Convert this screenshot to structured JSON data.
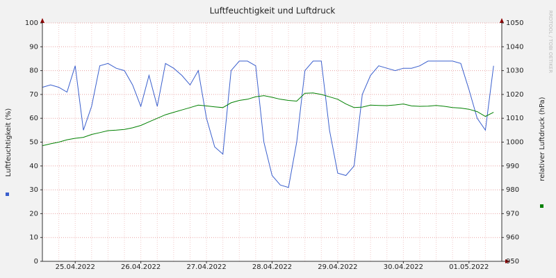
{
  "chart_data": {
    "type": "line",
    "title": "Luftfeuchtigkeit und Luftdruck",
    "y_label": "Luftfeuchtigkeit (%)",
    "y2_label": "relativer Luftdruck (hPa)",
    "watermark": "RRDTOOL / TOBI OETIKER",
    "categories": [
      null,
      null,
      null,
      null,
      "25.04.2022",
      null,
      null,
      null,
      null,
      null,
      null,
      null,
      "26.04.2022",
      null,
      null,
      null,
      null,
      null,
      null,
      null,
      "27.04.2022",
      null,
      null,
      null,
      null,
      null,
      null,
      null,
      "28.04.2022",
      null,
      null,
      null,
      null,
      null,
      null,
      null,
      "29.04.2022",
      null,
      null,
      null,
      null,
      null,
      null,
      null,
      "30.04.2022",
      null,
      null,
      null,
      null,
      null,
      null,
      null,
      "01.05.2022",
      null,
      null,
      null
    ],
    "series": [
      {
        "color": "#3a5fcd",
        "values": [
          73,
          74,
          73,
          71,
          82,
          55,
          65,
          82,
          83,
          81,
          80,
          74,
          65,
          78,
          65,
          83,
          81,
          78,
          74,
          80,
          60,
          48,
          45,
          80,
          84,
          84,
          82,
          50,
          36,
          32,
          31,
          50,
          80,
          84,
          84,
          55,
          37,
          36,
          40,
          70,
          78,
          82,
          81,
          80,
          81,
          81,
          82,
          84,
          84,
          84,
          84,
          83,
          72,
          60,
          55,
          82
        ]
      },
      {
        "color": "#008000",
        "axis": "y2",
        "values": [
          998.5,
          999.3,
          1000,
          1001,
          1001.6,
          1002,
          1003.2,
          1004,
          1004.8,
          1005,
          1005.3,
          1006,
          1007,
          1008.5,
          1010,
          1011.5,
          1012.5,
          1013.5,
          1014.5,
          1015.5,
          1015.2,
          1014.8,
          1014.5,
          1016.5,
          1017.5,
          1018,
          1019,
          1019.5,
          1018.8,
          1018,
          1017.5,
          1017.2,
          1020.5,
          1020.6,
          1020,
          1019,
          1018,
          1016,
          1014.5,
          1014.7,
          1015.5,
          1015.4,
          1015.3,
          1015.6,
          1016,
          1015.2,
          1015,
          1015.1,
          1015.4,
          1015,
          1014.5,
          1014.3,
          1013.8,
          1012.8,
          1010.8,
          1012.5
        ]
      }
    ],
    "ylim": [
      0,
      100
    ],
    "yticks": [
      0,
      10,
      20,
      30,
      40,
      50,
      60,
      70,
      80,
      90,
      100
    ],
    "y2lim": [
      950,
      1050
    ],
    "y2ticks": [
      950,
      960,
      970,
      980,
      990,
      1000,
      1010,
      1020,
      1030,
      1040,
      1050
    ],
    "grid": true
  }
}
